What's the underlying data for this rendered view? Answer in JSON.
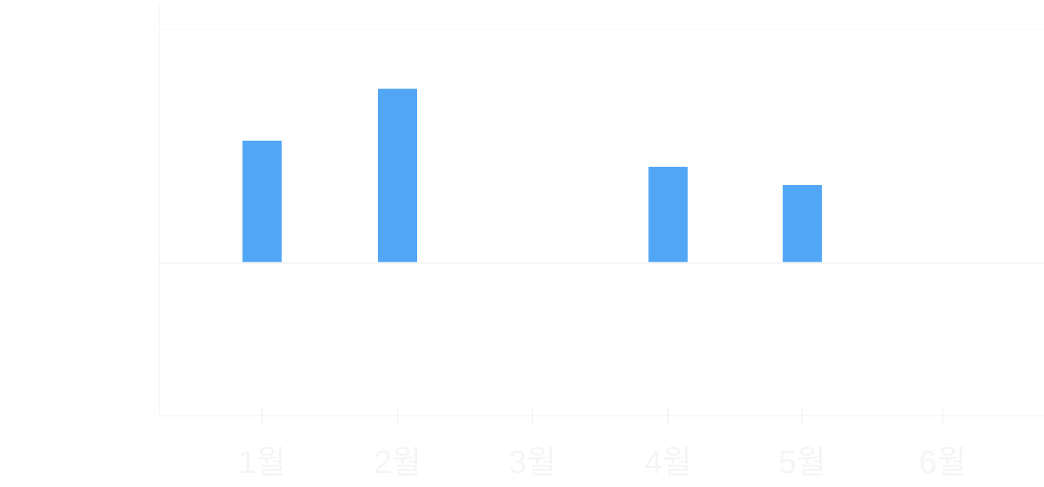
{
  "chart_data": {
    "type": "bar",
    "categories": [
      "1월",
      "2월",
      "3월",
      "4월",
      "5월",
      "6월"
    ],
    "values": [
      0.47,
      0.67,
      0,
      0.37,
      0.3,
      0
    ],
    "ylim": [
      -0.58,
      1.0
    ],
    "grid": true,
    "legend": "none",
    "colors": {
      "bar": "#52a6f6",
      "axis": "#f3f5f7",
      "grid": "#f7f8f9",
      "tick_label": "#f3f5f7"
    }
  }
}
